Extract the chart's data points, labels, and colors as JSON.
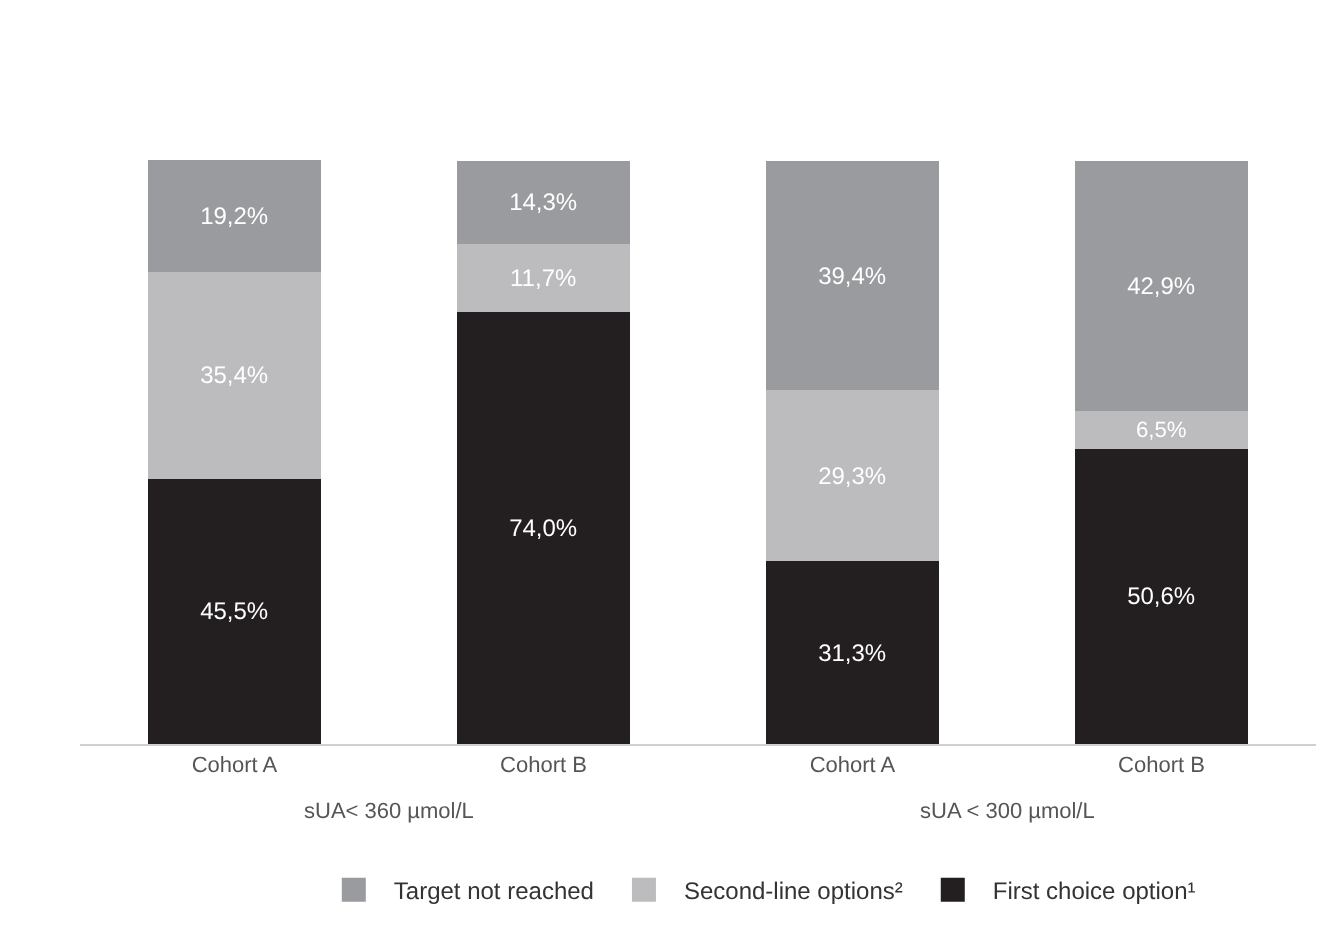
{
  "chart_data": {
    "type": "bar",
    "stacked": true,
    "categories": [
      "Cohort A",
      "Cohort B",
      "Cohort A",
      "Cohort B"
    ],
    "series": [
      {
        "name": "First choice option¹",
        "color": "#231f20",
        "values": [
          45.5,
          74.0,
          31.3,
          50.6
        ],
        "value_labels": [
          "45,5%",
          "74,0%",
          "31,3%",
          "50,6%"
        ]
      },
      {
        "name": "Second-line options²",
        "color": "#bcbcbe",
        "values": [
          35.4,
          11.7,
          29.3,
          6.5
        ],
        "value_labels": [
          "35,4%",
          "11,7%",
          "29,3%",
          "6,5%"
        ]
      },
      {
        "name": "Target not reached",
        "color": "#999b9e",
        "values": [
          19.2,
          14.3,
          39.4,
          42.9
        ],
        "value_labels": [
          "19,2%",
          "14,3%",
          "39,4%",
          "42,9%"
        ]
      }
    ],
    "annotations": [
      "sUA< 360 µmol/L",
      "sUA < 300 µmol/L"
    ],
    "legend": "bottom"
  }
}
